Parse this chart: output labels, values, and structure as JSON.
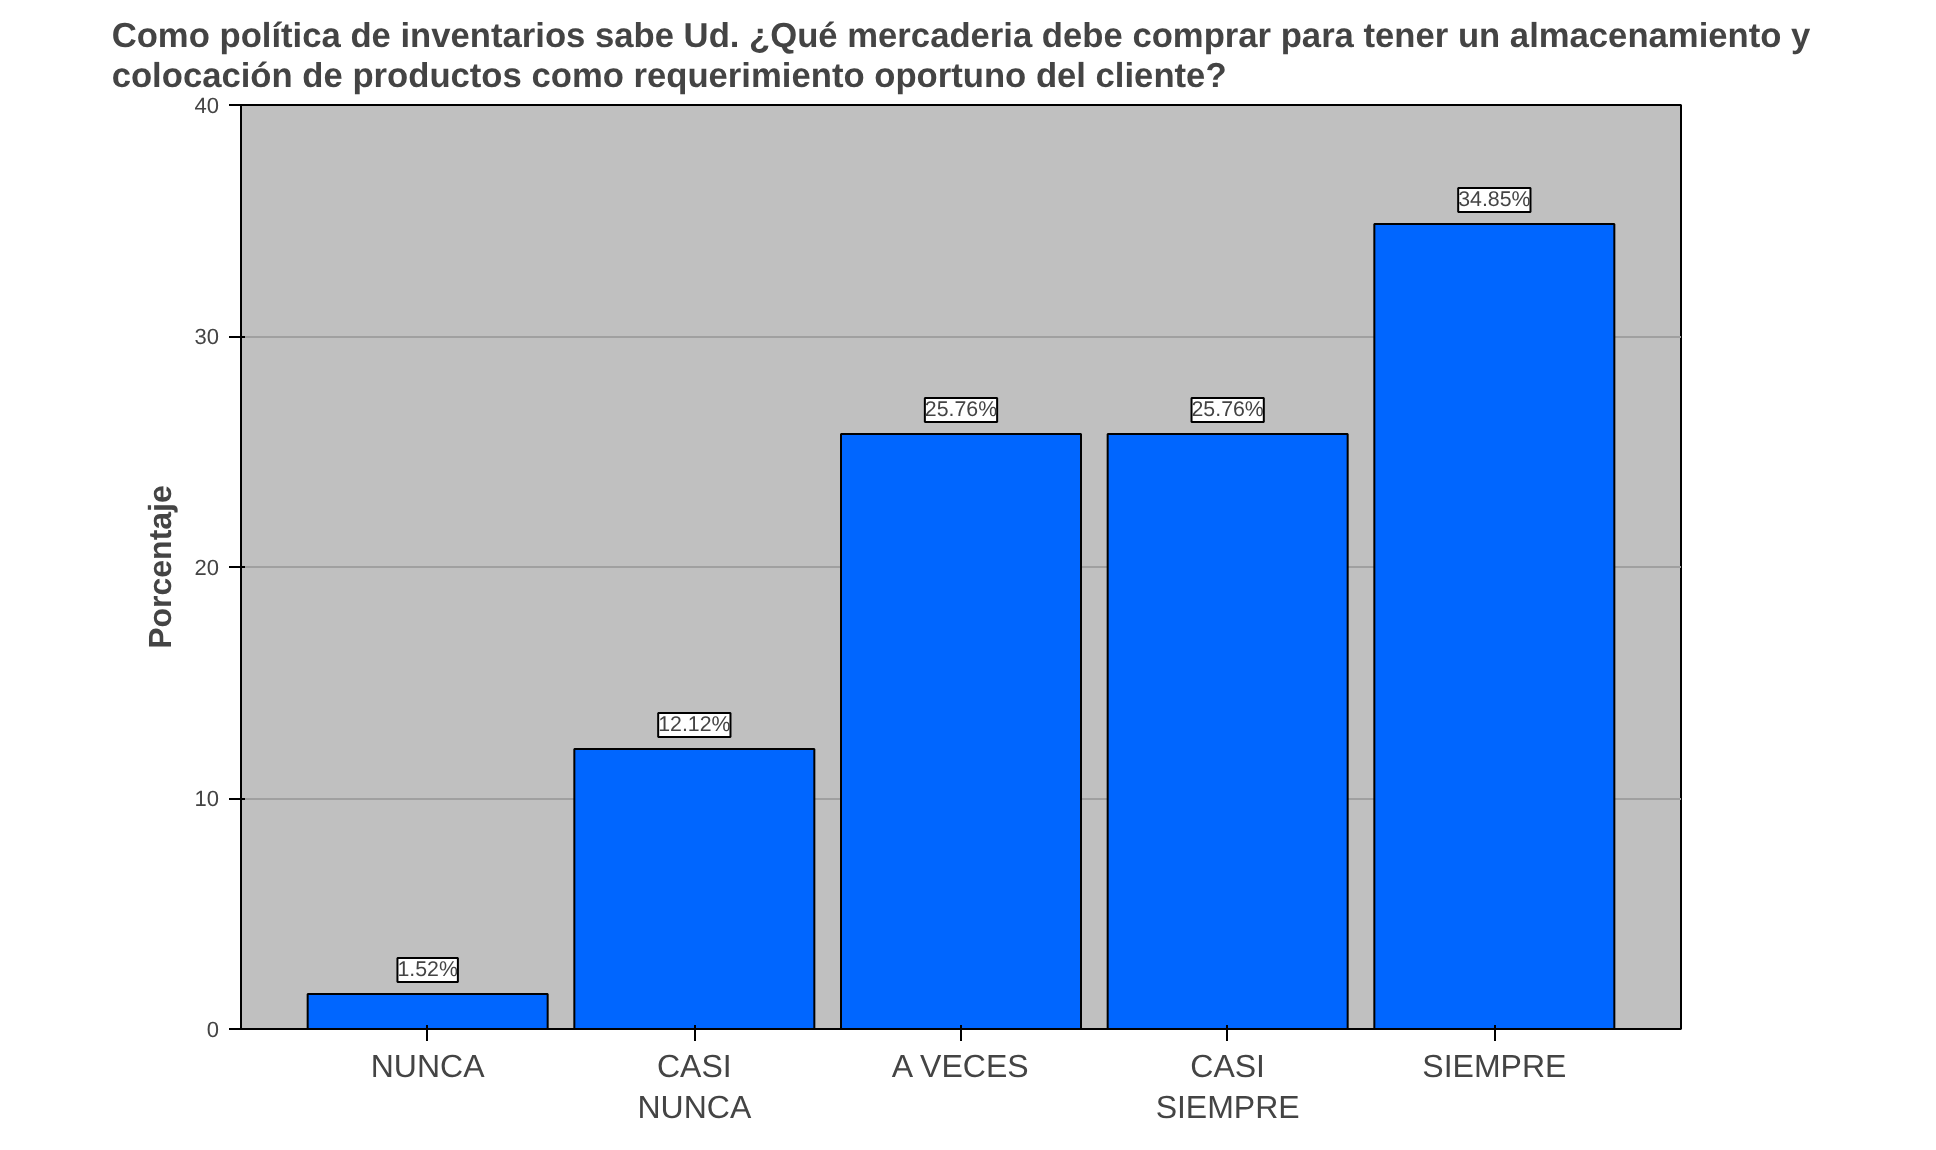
{
  "chart_data": {
    "type": "bar",
    "title": "Como política de inventarios sabe Ud. ¿Qué mercaderia debe comprar para tener un almacenamiento y\ncolocación de productos como requerimiento oportuno del cliente?",
    "ylabel": "Porcentaje",
    "categories": [
      "NUNCA",
      "CASI\nNUNCA",
      "A VECES",
      "CASI\nSIEMPRE",
      "SIEMPRE"
    ],
    "values": [
      1.52,
      12.12,
      25.76,
      25.76,
      34.85
    ],
    "value_labels": [
      "1.52%",
      "12.12%",
      "25.76%",
      "25.76%",
      "34.85%"
    ],
    "color": "#0066ff",
    "ylim": [
      0,
      40
    ],
    "yticks": [
      0,
      10,
      20,
      30,
      40
    ],
    "grid": "y"
  }
}
